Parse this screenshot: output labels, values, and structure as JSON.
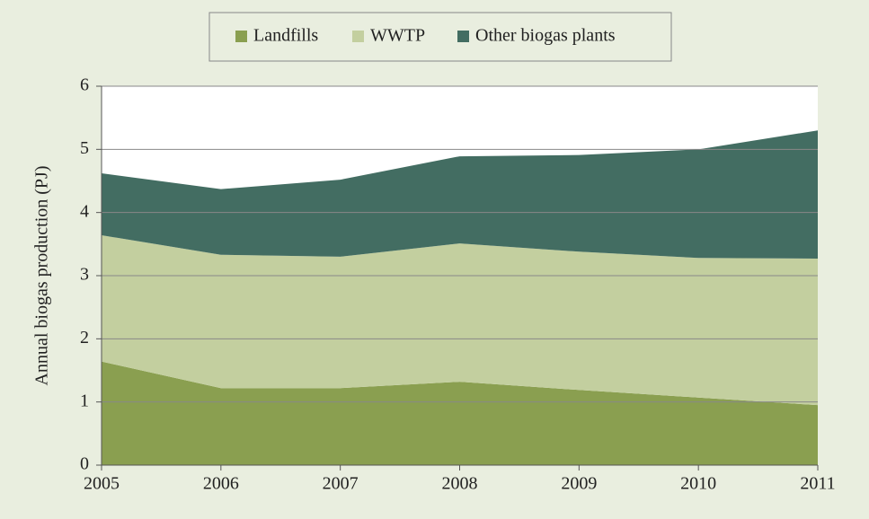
{
  "chart_data": {
    "type": "stacked_area",
    "y_label": "Annual biogas production (PJ)",
    "x": [
      2005,
      2006,
      2007,
      2008,
      2009,
      2010,
      2011
    ],
    "xlim": [
      2005,
      2011
    ],
    "xticks": [
      2005,
      2006,
      2007,
      2008,
      2009,
      2010,
      2011
    ],
    "ylim": [
      0,
      6
    ],
    "yticks": [
      0,
      1,
      2,
      3,
      4,
      5,
      6
    ],
    "grid": true,
    "legend": "top",
    "series": [
      {
        "name": "Landfills",
        "color": "#8a9f50",
        "values": [
          1.64,
          1.22,
          1.22,
          1.32,
          1.19,
          1.07,
          0.95
        ]
      },
      {
        "name": "WWTP",
        "color": "#c3cf9f",
        "values": [
          2.0,
          2.11,
          2.08,
          2.19,
          2.19,
          2.21,
          2.32
        ]
      },
      {
        "name": "Other biogas plants",
        "color": "#436d62",
        "values": [
          0.98,
          1.04,
          1.22,
          1.38,
          1.53,
          1.72,
          2.03
        ]
      }
    ]
  }
}
